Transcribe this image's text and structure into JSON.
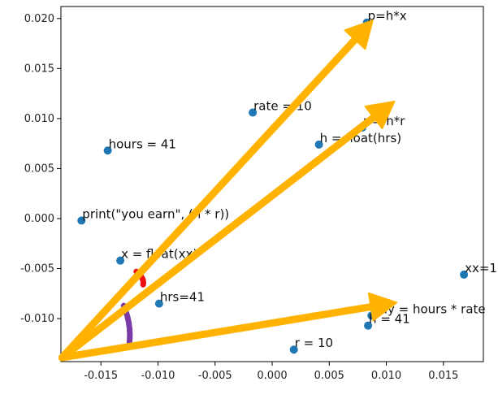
{
  "chart_data": {
    "type": "scatter",
    "title": "",
    "xlabel": "",
    "ylabel": "",
    "xlim": [
      -0.0185,
      0.0185
    ],
    "ylim": [
      -0.0143,
      0.0212
    ],
    "xticks": [
      "-0.015",
      "-0.010",
      "-0.005",
      "0.000",
      "0.005",
      "0.010",
      "0.015"
    ],
    "xtick_values": [
      -0.015,
      -0.01,
      -0.005,
      0.0,
      0.005,
      0.01,
      0.015
    ],
    "yticks": [
      "0.020",
      "0.015",
      "0.010",
      "0.005",
      "0.000",
      "-0.005",
      "-0.010"
    ],
    "ytick_values": [
      0.02,
      0.015,
      0.01,
      0.005,
      0.0,
      -0.005,
      -0.01
    ],
    "grid": false,
    "point_color": "#1f77b4",
    "points": [
      {
        "x": 0.0083,
        "y": 0.0196,
        "label": "p=h*x"
      },
      {
        "x": -0.0017,
        "y": 0.0106,
        "label": "rate = 10"
      },
      {
        "x": 0.0079,
        "y": 0.0091,
        "label": "r = h*r"
      },
      {
        "x": 0.0041,
        "y": 0.0074,
        "label": "h = float(hrs)"
      },
      {
        "x": -0.0144,
        "y": 0.0068,
        "label": "hours = 41"
      },
      {
        "x": -0.0167,
        "y": -0.0002,
        "label": "print(\"you earn\", (h * r))"
      },
      {
        "x": -0.0133,
        "y": -0.0042,
        "label": "x = float(xx)"
      },
      {
        "x": 0.0168,
        "y": -0.0056,
        "label": "xx=10"
      },
      {
        "x": -0.0099,
        "y": -0.0085,
        "label": "hrs=41"
      },
      {
        "x": 0.0084,
        "y": -0.0107,
        "label": "h = 41"
      },
      {
        "x": 0.0087,
        "y": -0.0097,
        "label": "pay = hours * rate"
      },
      {
        "x": 0.0019,
        "y": -0.0131,
        "label": "r = 10"
      }
    ],
    "annotations": {
      "arrow_color": "#ffb300",
      "arrows": [
        {
          "from": [
            -0.0184,
            -0.0139
          ],
          "to": [
            0.0088,
            0.0198
          ]
        },
        {
          "from": [
            -0.0184,
            -0.0139
          ],
          "to": [
            0.0107,
            0.0117
          ]
        },
        {
          "from": [
            -0.0184,
            -0.0139
          ],
          "to": [
            0.0109,
            -0.0084
          ]
        }
      ],
      "angle_marks": [
        {
          "color": "#ee1111",
          "from": [
            -0.0119,
            -0.0053
          ],
          "to": [
            -0.0113,
            -0.0066
          ]
        },
        {
          "color": "#7a3aa8",
          "from": [
            -0.013,
            -0.0087
          ],
          "to": [
            -0.0125,
            -0.0124
          ]
        }
      ]
    }
  }
}
